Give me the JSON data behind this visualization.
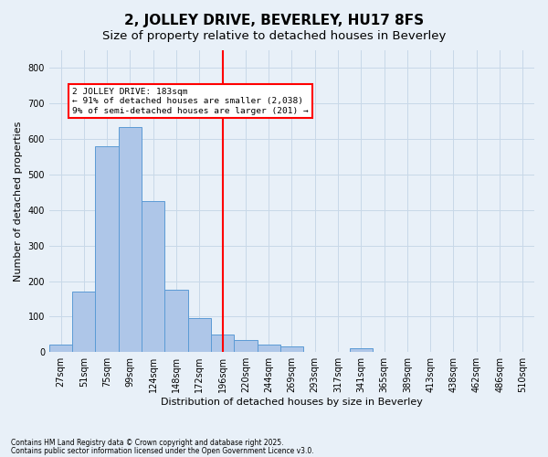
{
  "title": "2, JOLLEY DRIVE, BEVERLEY, HU17 8FS",
  "subtitle": "Size of property relative to detached houses in Beverley",
  "xlabel": "Distribution of detached houses by size in Beverley",
  "ylabel": "Number of detached properties",
  "footer1": "Contains HM Land Registry data © Crown copyright and database right 2025.",
  "footer2": "Contains public sector information licensed under the Open Government Licence v3.0.",
  "bin_labels": [
    "27sqm",
    "51sqm",
    "75sqm",
    "99sqm",
    "124sqm",
    "148sqm",
    "172sqm",
    "196sqm",
    "220sqm",
    "244sqm",
    "269sqm",
    "293sqm",
    "317sqm",
    "341sqm",
    "365sqm",
    "389sqm",
    "413sqm",
    "438sqm",
    "462sqm",
    "486sqm",
    "510sqm"
  ],
  "bar_values": [
    20,
    170,
    580,
    635,
    425,
    175,
    95,
    50,
    35,
    20,
    15,
    0,
    0,
    10,
    0,
    0,
    0,
    0,
    0,
    0,
    0
  ],
  "bar_color": "#aec6e8",
  "bar_edge_color": "#5b9bd5",
  "vline_x": 7.0,
  "vline_color": "red",
  "property_label": "2 JOLLEY DRIVE: 183sqm",
  "annotation_line1": "← 91% of detached houses are smaller (2,038)",
  "annotation_line2": "9% of semi-detached houses are larger (201) →",
  "annotation_box_color": "red",
  "annotation_bg": "white",
  "ylim": [
    0,
    850
  ],
  "yticks": [
    0,
    100,
    200,
    300,
    400,
    500,
    600,
    700,
    800
  ],
  "grid_color": "#c8d8e8",
  "bg_color": "#e8f0f8",
  "title_fontsize": 11,
  "subtitle_fontsize": 9.5,
  "tick_fontsize": 7,
  "label_fontsize": 8
}
